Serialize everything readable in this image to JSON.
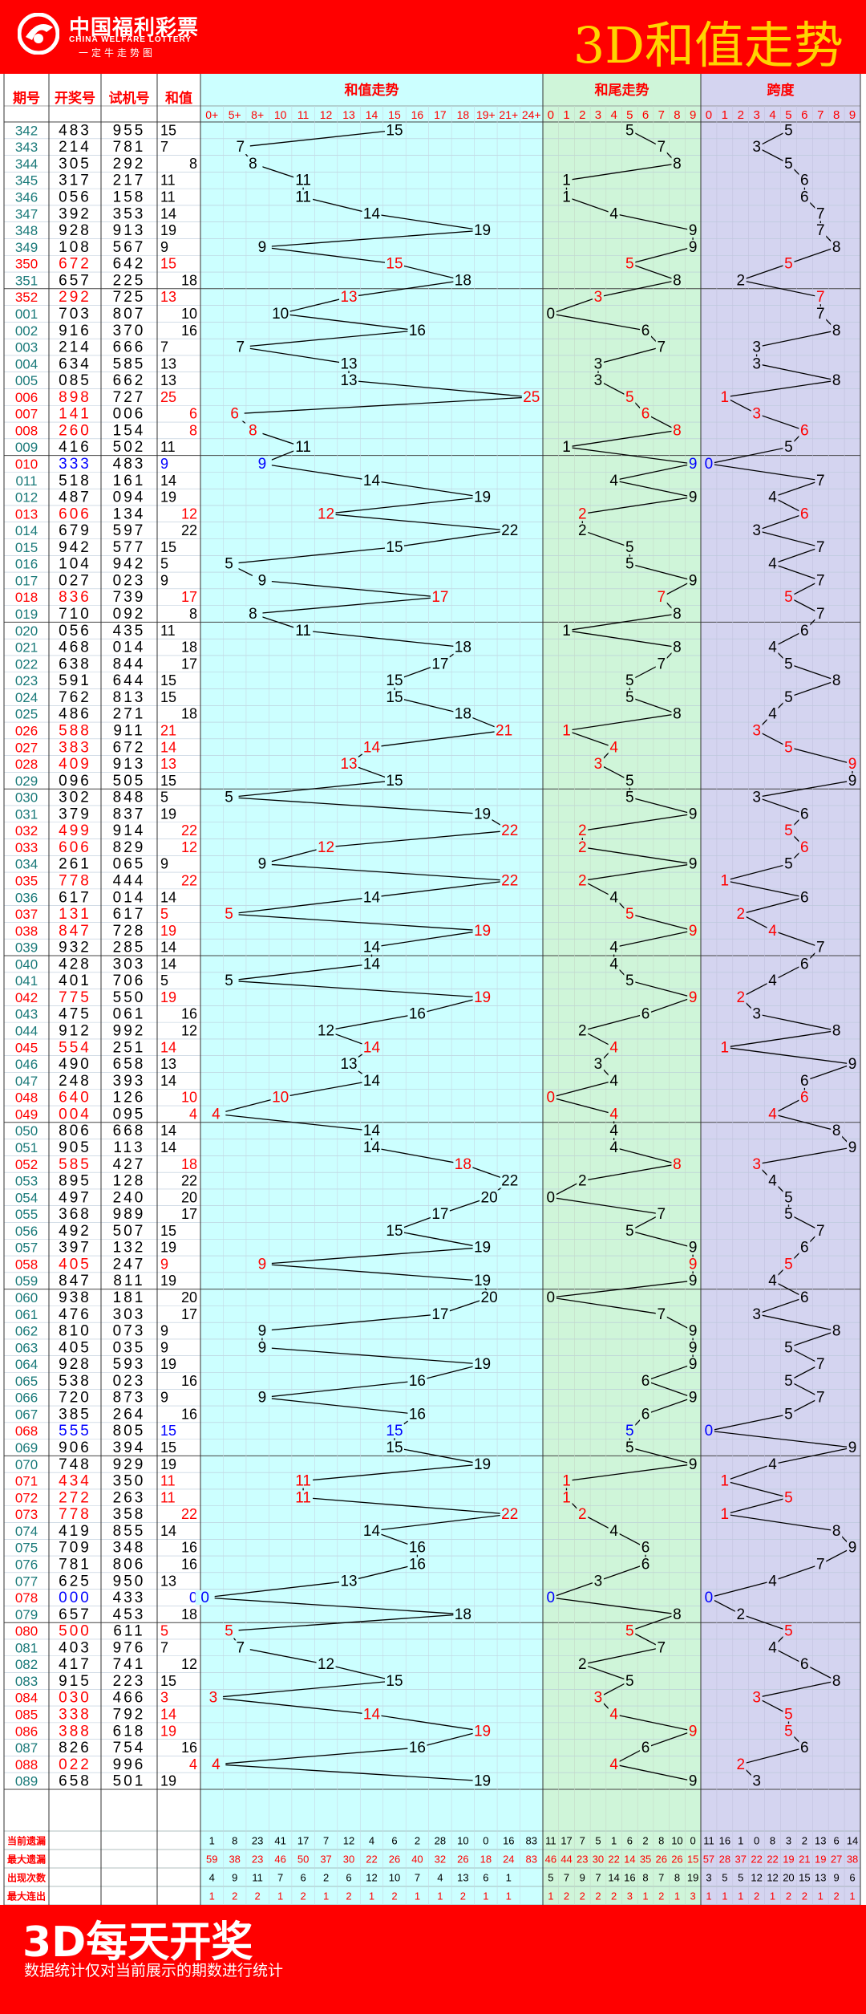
{
  "header": {
    "logo_cn": "中国福利彩票",
    "logo_en": "CHINA WELFARE LOTTERY",
    "logo_sub": "一定牛走势图",
    "title": "3D和值走势"
  },
  "footer": {
    "title": "3D每天开奖",
    "note": "数据统计仅对当前展示的期数进行统计"
  },
  "colors": {
    "brand_red": "#ff0000",
    "title_yellow": "#ffd400",
    "sum_bg": "#ccffff",
    "tail_bg": "#cff5d9",
    "span_bg": "#d4d4f0",
    "highlight_red": "#ff0000",
    "highlight_blue": "#0000ff",
    "issue_color": "#1a7a7a"
  },
  "chart_data": {
    "type": "table",
    "columns": {
      "issue": "期号",
      "number": "开奖号",
      "test": "试机号",
      "sum": "和值",
      "sum_trend": "和值走势",
      "tail_trend": "和尾走势",
      "span": "跨度"
    },
    "sum_bins": [
      "0+",
      "5+",
      "8+",
      "10",
      "11",
      "12",
      "13",
      "14",
      "15",
      "16",
      "17",
      "18",
      "19+",
      "21+",
      "24+"
    ],
    "digit_bins": [
      "0",
      "1",
      "2",
      "3",
      "4",
      "5",
      "6",
      "7",
      "8",
      "9"
    ],
    "rows": [
      [
        "342",
        "483",
        "955",
        15,
        "",
        5,
        5
      ],
      [
        "343",
        "214",
        "781",
        7,
        "",
        7,
        3
      ],
      [
        "344",
        "305",
        "292",
        8,
        "",
        8,
        5
      ],
      [
        "345",
        "317",
        "217",
        11,
        "",
        1,
        6
      ],
      [
        "346",
        "056",
        "158",
        11,
        "",
        1,
        6
      ],
      [
        "347",
        "392",
        "353",
        14,
        "",
        4,
        7
      ],
      [
        "348",
        "928",
        "913",
        19,
        "",
        9,
        7
      ],
      [
        "349",
        "108",
        "567",
        9,
        "",
        9,
        8
      ],
      [
        "350",
        "672",
        "642",
        15,
        "r",
        5,
        5
      ],
      [
        "351",
        "657",
        "225",
        18,
        "",
        8,
        2
      ],
      [
        "352",
        "292",
        "725",
        13,
        "r",
        3,
        7
      ],
      [
        "001",
        "703",
        "807",
        10,
        "",
        0,
        7
      ],
      [
        "002",
        "916",
        "370",
        16,
        "",
        6,
        8
      ],
      [
        "003",
        "214",
        "666",
        7,
        "",
        7,
        3
      ],
      [
        "004",
        "634",
        "585",
        13,
        "",
        3,
        3
      ],
      [
        "005",
        "085",
        "662",
        13,
        "",
        3,
        8
      ],
      [
        "006",
        "898",
        "727",
        25,
        "r",
        5,
        1
      ],
      [
        "007",
        "141",
        "006",
        6,
        "r",
        6,
        3
      ],
      [
        "008",
        "260",
        "154",
        8,
        "r",
        8,
        6
      ],
      [
        "009",
        "416",
        "502",
        11,
        "",
        1,
        5
      ],
      [
        "010",
        "333",
        "483",
        9,
        "b",
        9,
        0
      ],
      [
        "011",
        "518",
        "161",
        14,
        "",
        4,
        7
      ],
      [
        "012",
        "487",
        "094",
        19,
        "",
        9,
        4
      ],
      [
        "013",
        "606",
        "134",
        12,
        "r",
        2,
        6
      ],
      [
        "014",
        "679",
        "597",
        22,
        "",
        2,
        3
      ],
      [
        "015",
        "942",
        "577",
        15,
        "",
        5,
        7
      ],
      [
        "016",
        "104",
        "942",
        5,
        "",
        5,
        4
      ],
      [
        "017",
        "027",
        "023",
        9,
        "",
        9,
        7
      ],
      [
        "018",
        "836",
        "739",
        17,
        "r",
        7,
        5
      ],
      [
        "019",
        "710",
        "092",
        8,
        "",
        8,
        7
      ],
      [
        "020",
        "056",
        "435",
        11,
        "",
        1,
        6
      ],
      [
        "021",
        "468",
        "014",
        18,
        "",
        8,
        4
      ],
      [
        "022",
        "638",
        "844",
        17,
        "",
        7,
        5
      ],
      [
        "023",
        "591",
        "644",
        15,
        "",
        5,
        8
      ],
      [
        "024",
        "762",
        "813",
        15,
        "",
        5,
        5
      ],
      [
        "025",
        "486",
        "271",
        18,
        "",
        8,
        4
      ],
      [
        "026",
        "588",
        "911",
        21,
        "r",
        1,
        3
      ],
      [
        "027",
        "383",
        "672",
        14,
        "r",
        4,
        5
      ],
      [
        "028",
        "409",
        "913",
        13,
        "r",
        3,
        9
      ],
      [
        "029",
        "096",
        "505",
        15,
        "",
        5,
        9
      ],
      [
        "030",
        "302",
        "848",
        5,
        "",
        5,
        3
      ],
      [
        "031",
        "379",
        "837",
        19,
        "",
        9,
        6
      ],
      [
        "032",
        "499",
        "914",
        22,
        "r",
        2,
        5
      ],
      [
        "033",
        "606",
        "829",
        12,
        "r",
        2,
        6
      ],
      [
        "034",
        "261",
        "065",
        9,
        "",
        9,
        5
      ],
      [
        "035",
        "778",
        "444",
        22,
        "r",
        2,
        1
      ],
      [
        "036",
        "617",
        "014",
        14,
        "",
        4,
        6
      ],
      [
        "037",
        "131",
        "617",
        5,
        "r",
        5,
        2
      ],
      [
        "038",
        "847",
        "728",
        19,
        "r",
        9,
        4
      ],
      [
        "039",
        "932",
        "285",
        14,
        "",
        4,
        7
      ],
      [
        "040",
        "428",
        "303",
        14,
        "",
        4,
        6
      ],
      [
        "041",
        "401",
        "706",
        5,
        "",
        5,
        4
      ],
      [
        "042",
        "775",
        "550",
        19,
        "r",
        9,
        2
      ],
      [
        "043",
        "475",
        "061",
        16,
        "",
        6,
        3
      ],
      [
        "044",
        "912",
        "992",
        12,
        "",
        2,
        8
      ],
      [
        "045",
        "554",
        "251",
        14,
        "r",
        4,
        1
      ],
      [
        "046",
        "490",
        "658",
        13,
        "",
        3,
        9
      ],
      [
        "047",
        "248",
        "393",
        14,
        "",
        4,
        6
      ],
      [
        "048",
        "640",
        "126",
        10,
        "r",
        0,
        6
      ],
      [
        "049",
        "004",
        "095",
        4,
        "r",
        4,
        4
      ],
      [
        "050",
        "806",
        "668",
        14,
        "",
        4,
        8
      ],
      [
        "051",
        "905",
        "113",
        14,
        "",
        4,
        9
      ],
      [
        "052",
        "585",
        "427",
        18,
        "r",
        8,
        3
      ],
      [
        "053",
        "895",
        "128",
        22,
        "",
        2,
        4
      ],
      [
        "054",
        "497",
        "240",
        20,
        "",
        0,
        5
      ],
      [
        "055",
        "368",
        "989",
        17,
        "",
        7,
        5
      ],
      [
        "056",
        "492",
        "507",
        15,
        "",
        5,
        7
      ],
      [
        "057",
        "397",
        "132",
        19,
        "",
        9,
        6
      ],
      [
        "058",
        "405",
        "247",
        9,
        "r",
        9,
        5
      ],
      [
        "059",
        "847",
        "811",
        19,
        "",
        9,
        4
      ],
      [
        "060",
        "938",
        "181",
        20,
        "",
        0,
        6
      ],
      [
        "061",
        "476",
        "303",
        17,
        "",
        7,
        3
      ],
      [
        "062",
        "810",
        "073",
        9,
        "",
        9,
        8
      ],
      [
        "063",
        "405",
        "035",
        9,
        "",
        9,
        5
      ],
      [
        "064",
        "928",
        "593",
        19,
        "",
        9,
        7
      ],
      [
        "065",
        "538",
        "023",
        16,
        "",
        6,
        5
      ],
      [
        "066",
        "720",
        "873",
        9,
        "",
        9,
        7
      ],
      [
        "067",
        "385",
        "264",
        16,
        "",
        6,
        5
      ],
      [
        "068",
        "555",
        "805",
        15,
        "b",
        5,
        0
      ],
      [
        "069",
        "906",
        "394",
        15,
        "",
        5,
        9
      ],
      [
        "070",
        "748",
        "929",
        19,
        "",
        9,
        4
      ],
      [
        "071",
        "434",
        "350",
        11,
        "r",
        1,
        1
      ],
      [
        "072",
        "272",
        "263",
        11,
        "r",
        1,
        5
      ],
      [
        "073",
        "778",
        "358",
        22,
        "r",
        2,
        1
      ],
      [
        "074",
        "419",
        "855",
        14,
        "",
        4,
        8
      ],
      [
        "075",
        "709",
        "348",
        16,
        "",
        6,
        9
      ],
      [
        "076",
        "781",
        "806",
        16,
        "",
        6,
        7
      ],
      [
        "077",
        "625",
        "950",
        13,
        "",
        3,
        4
      ],
      [
        "078",
        "000",
        "433",
        0,
        "b",
        0,
        0
      ],
      [
        "079",
        "657",
        "453",
        18,
        "",
        8,
        2
      ],
      [
        "080",
        "500",
        "611",
        5,
        "r",
        5,
        5
      ],
      [
        "081",
        "403",
        "976",
        7,
        "",
        7,
        4
      ],
      [
        "082",
        "417",
        "741",
        12,
        "",
        2,
        6
      ],
      [
        "083",
        "915",
        "223",
        15,
        "",
        5,
        8
      ],
      [
        "084",
        "030",
        "466",
        3,
        "r",
        3,
        3
      ],
      [
        "085",
        "338",
        "792",
        14,
        "r",
        4,
        5
      ],
      [
        "086",
        "388",
        "618",
        19,
        "r",
        9,
        5
      ],
      [
        "087",
        "826",
        "754",
        16,
        "",
        6,
        6
      ],
      [
        "088",
        "022",
        "996",
        4,
        "r",
        4,
        2
      ],
      [
        "089",
        "658",
        "501",
        19,
        "",
        9,
        3
      ]
    ],
    "stats_labels": [
      "当前遗漏",
      "最大遗漏",
      "出现次数",
      "最大连出"
    ],
    "stats": {
      "sum": [
        [
          "1",
          "8",
          "23",
          "41",
          "17",
          "7",
          "12",
          "4",
          "6",
          "2",
          "28",
          "10",
          "0",
          "16",
          "83"
        ],
        [
          "59",
          "38",
          "23",
          "46",
          "50",
          "37",
          "30",
          "22",
          "26",
          "40",
          "32",
          "26",
          "18",
          "24",
          "83"
        ],
        [
          "4",
          "9",
          "11",
          "7",
          "6",
          "2",
          "6",
          "12",
          "10",
          "7",
          "4",
          "13",
          "6",
          "1",
          ""
        ],
        [
          "1",
          "2",
          "2",
          "1",
          "2",
          "1",
          "2",
          "1",
          "2",
          "1",
          "1",
          "2",
          "1",
          "1",
          ""
        ]
      ],
      "tail": [
        [
          "11",
          "17",
          "7",
          "5",
          "1",
          "6",
          "2",
          "8",
          "10",
          "0"
        ],
        [
          "46",
          "44",
          "23",
          "30",
          "22",
          "14",
          "35",
          "26",
          "26",
          "15"
        ],
        [
          "5",
          "7",
          "9",
          "7",
          "14",
          "16",
          "8",
          "7",
          "8",
          "19"
        ],
        [
          "1",
          "2",
          "2",
          "2",
          "2",
          "3",
          "1",
          "2",
          "1",
          "3"
        ]
      ],
      "span": [
        [
          "11",
          "16",
          "1",
          "0",
          "8",
          "3",
          "2",
          "13",
          "6",
          "14"
        ],
        [
          "57",
          "28",
          "37",
          "22",
          "22",
          "19",
          "21",
          "19",
          "27",
          "38"
        ],
        [
          "3",
          "5",
          "5",
          "12",
          "12",
          "20",
          "15",
          "13",
          "9",
          "6"
        ],
        [
          "1",
          "1",
          "1",
          "2",
          "1",
          "2",
          "2",
          "1",
          "2",
          "1"
        ]
      ]
    }
  }
}
